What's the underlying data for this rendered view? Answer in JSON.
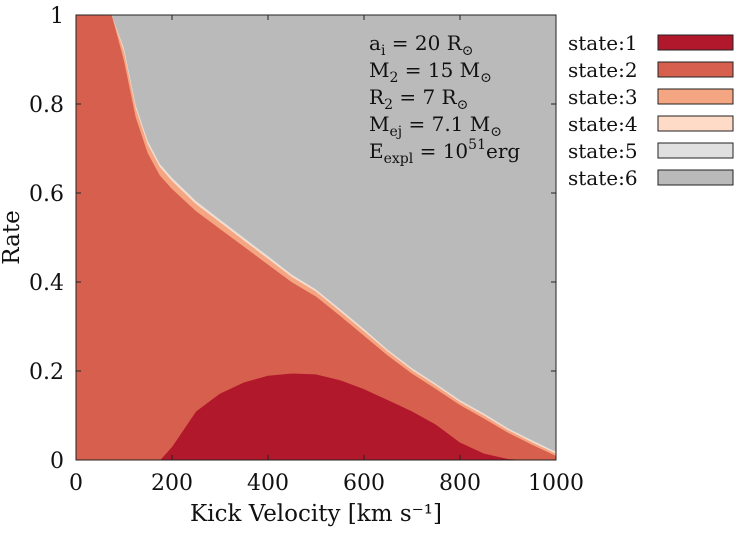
{
  "chart_data": {
    "type": "area",
    "stacked": true,
    "xlabel": "Kick Velocity [km s⁻¹]",
    "ylabel": "Rate",
    "xlim": [
      0,
      1000
    ],
    "ylim": [
      0,
      1
    ],
    "x_ticks": [
      "0",
      "200",
      "400",
      "600",
      "800",
      "1000"
    ],
    "y_ticks": [
      "0",
      "0.2",
      "0.4",
      "0.6",
      "0.8",
      "1"
    ],
    "grid": false,
    "legend_position": "outside-right",
    "annotations": [
      {
        "base": "a",
        "sub": "i",
        "rest": " = 20 R",
        "sym": "⊙",
        "sup": ""
      },
      {
        "base": "M",
        "sub": "2",
        "rest": " = 15 M",
        "sym": "⊙",
        "sup": ""
      },
      {
        "base": "R",
        "sub": "2",
        "rest": " = 7 R",
        "sym": "⊙",
        "sup": ""
      },
      {
        "base": "M",
        "sub": "ej",
        "rest": " = 7.1 M",
        "sym": "⊙",
        "sup": ""
      },
      {
        "base": "E",
        "sub": "expl",
        "rest": " = 10",
        "sym": "",
        "sup": "51",
        "tail": "erg"
      }
    ],
    "x": [
      0,
      25,
      50,
      75,
      100,
      125,
      150,
      175,
      200,
      250,
      300,
      350,
      400,
      450,
      500,
      550,
      600,
      650,
      700,
      750,
      800,
      850,
      900,
      950,
      1000
    ],
    "series": [
      {
        "name": "state:1",
        "color": "#b2182b",
        "values": [
          0,
          0,
          0,
          0,
          0,
          0,
          0,
          0,
          0.03,
          0.11,
          0.15,
          0.175,
          0.19,
          0.195,
          0.193,
          0.18,
          0.16,
          0.135,
          0.11,
          0.08,
          0.04,
          0.015,
          0.003,
          0,
          0
        ]
      },
      {
        "name": "state:2",
        "color": "#d6604d",
        "values": [
          1,
          1,
          1,
          1,
          0.9,
          0.77,
          0.69,
          0.64,
          0.58,
          0.45,
          0.37,
          0.305,
          0.25,
          0.205,
          0.175,
          0.145,
          0.12,
          0.1,
          0.085,
          0.08,
          0.084,
          0.079,
          0.059,
          0.035,
          0.01
        ]
      },
      {
        "name": "state:3",
        "color": "#f4a582",
        "values": [
          0,
          0,
          0,
          0.02,
          0.02,
          0.02,
          0.02,
          0.019,
          0.018,
          0.016,
          0.015,
          0.014,
          0.013,
          0.012,
          0.011,
          0.01,
          0.01,
          0.009,
          0.008,
          0.008,
          0.007,
          0.007,
          0.006,
          0.006,
          0.005
        ]
      },
      {
        "name": "state:4",
        "color": "#fddbc7",
        "values": [
          0,
          0,
          0,
          0,
          0.004,
          0.004,
          0.004,
          0.004,
          0.004,
          0.004,
          0.003,
          0.003,
          0.003,
          0.003,
          0.003,
          0.003,
          0.003,
          0.002,
          0.002,
          0.002,
          0.002,
          0.002,
          0.002,
          0.002,
          0.002
        ]
      },
      {
        "name": "state:5",
        "color": "#e0e0e0",
        "values": [
          0,
          0,
          0,
          0,
          0.003,
          0.003,
          0.003,
          0.003,
          0.003,
          0.003,
          0.003,
          0.003,
          0.003,
          0.002,
          0.002,
          0.002,
          0.002,
          0.002,
          0.002,
          0.002,
          0.002,
          0.002,
          0.002,
          0.002,
          0.002
        ]
      },
      {
        "name": "state:6",
        "color": "#bababa",
        "values": [
          0,
          0,
          0,
          0,
          0.073,
          0.203,
          0.283,
          0.334,
          0.365,
          0.417,
          0.459,
          0.5,
          0.541,
          0.583,
          0.616,
          0.66,
          0.705,
          0.752,
          0.793,
          0.828,
          0.865,
          0.895,
          0.928,
          0.955,
          0.981
        ]
      }
    ]
  }
}
